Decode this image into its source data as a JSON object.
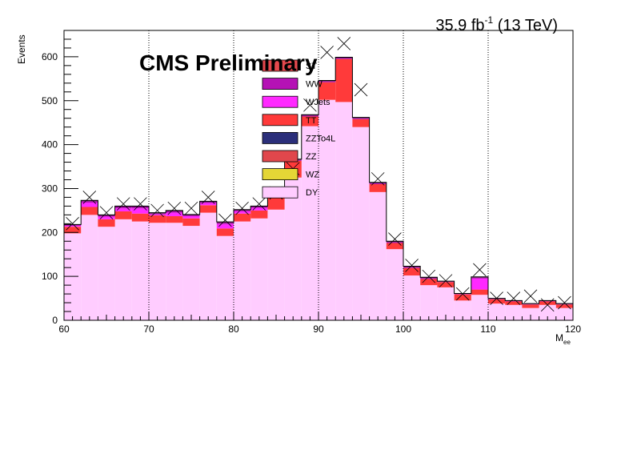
{
  "lumi_label": "35.9 fb",
  "lumi_sup": "-1",
  "energy_label": "(13 TeV)",
  "cms_label": "CMS Preliminary",
  "chart_data": {
    "type": "bar",
    "stacked": true,
    "xlabel_main": "M",
    "xlabel_sub": "ee",
    "ylabel": "Events",
    "xlim": [
      60,
      120
    ],
    "ylim": [
      0,
      660
    ],
    "x_ticks": [
      "60",
      "70",
      "80",
      "90",
      "100",
      "110",
      "120"
    ],
    "y_ticks": [
      "0",
      "100",
      "200",
      "300",
      "400",
      "500",
      "600"
    ],
    "grid_x": true,
    "grid_y": false,
    "legend_position": "top-center",
    "bin_edges": [
      60,
      62,
      64,
      66,
      68,
      70,
      72,
      74,
      76,
      78,
      80,
      82,
      84,
      86,
      88,
      90,
      92,
      94,
      96,
      98,
      100,
      102,
      104,
      106,
      108,
      110,
      112,
      114,
      116,
      118,
      120
    ],
    "legend": [
      {
        "name": "ST",
        "color": "#e5484d"
      },
      {
        "name": "WW",
        "color": "#b512b5"
      },
      {
        "name": "WJets",
        "color": "#ff29ff"
      },
      {
        "name": "TT",
        "color": "#ff3a3a"
      },
      {
        "name": "ZZTo4L",
        "color": "#2b2f7a"
      },
      {
        "name": "ZZ",
        "color": "#e0474c"
      },
      {
        "name": "WZ",
        "color": "#e4d636"
      },
      {
        "name": "DY",
        "color": "#ffccff"
      }
    ],
    "series": [
      {
        "name": "DY",
        "color": "#ffccff",
        "values": [
          198,
          240,
          213,
          230,
          225,
          222,
          222,
          215,
          245,
          192,
          225,
          232,
          252,
          325,
          442,
          502,
          497,
          440,
          292,
          162,
          102,
          80,
          75,
          45,
          58,
          38,
          35,
          28,
          35,
          28
        ]
      },
      {
        "name": "TT",
        "color": "#ff3a3a",
        "values": [
          15,
          18,
          17,
          18,
          18,
          17,
          15,
          17,
          17,
          17,
          18,
          18,
          28,
          38,
          22,
          40,
          98,
          18,
          18,
          14,
          17,
          14,
          12,
          14,
          12,
          10,
          8,
          8,
          8,
          8
        ]
      },
      {
        "name": "WJets",
        "color": "#ff29ff",
        "values": [
          2,
          10,
          6,
          7,
          12,
          2,
          8,
          5,
          5,
          10,
          5,
          6,
          5,
          0,
          0,
          0,
          0,
          0,
          0,
          0,
          0,
          0,
          0,
          0,
          25,
          0,
          0,
          0,
          0,
          0
        ]
      },
      {
        "name": "WW",
        "color": "#b512b5",
        "values": [
          2,
          3,
          2,
          3,
          3,
          2,
          3,
          2,
          2,
          3,
          2,
          2,
          2,
          2,
          2,
          2,
          2,
          2,
          2,
          2,
          2,
          2,
          1,
          1,
          2,
          1,
          1,
          1,
          1,
          1
        ]
      },
      {
        "name": "ST",
        "color": "#6a0f5e",
        "values": [
          1,
          2,
          2,
          2,
          2,
          2,
          2,
          2,
          2,
          2,
          2,
          2,
          2,
          2,
          2,
          2,
          2,
          2,
          2,
          2,
          2,
          2,
          1,
          1,
          2,
          1,
          1,
          1,
          1,
          1
        ]
      }
    ],
    "data_points": [
      220,
      280,
      245,
      265,
      265,
      250,
      255,
      255,
      280,
      228,
      255,
      265,
      290,
      345,
      490,
      610,
      630,
      525,
      322,
      185,
      125,
      100,
      90,
      60,
      115,
      50,
      50,
      55,
      35,
      40
    ]
  }
}
